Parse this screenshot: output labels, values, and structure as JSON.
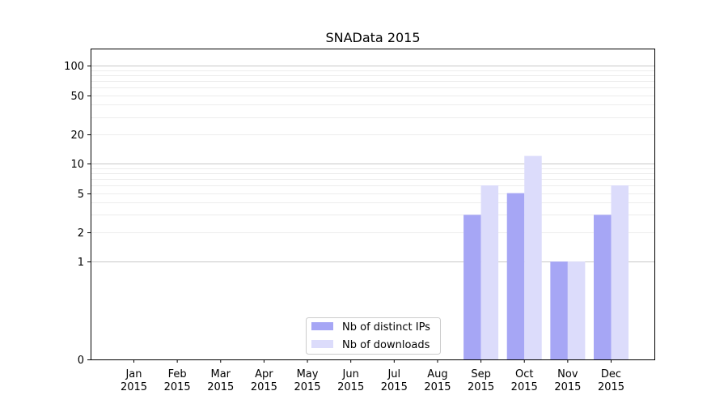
{
  "chart_data": {
    "type": "bar",
    "title": "SNAData 2015",
    "xlabel": "",
    "ylabel": "",
    "y_scale": "symlog",
    "ylim": [
      0,
      150
    ],
    "y_ticks": [
      0,
      1,
      2,
      5,
      10,
      20,
      50,
      100
    ],
    "grid": "horizontal, major and minor",
    "legend_position": "lower-center",
    "categories": [
      {
        "month": "Jan",
        "year": "2015"
      },
      {
        "month": "Feb",
        "year": "2015"
      },
      {
        "month": "Mar",
        "year": "2015"
      },
      {
        "month": "Apr",
        "year": "2015"
      },
      {
        "month": "May",
        "year": "2015"
      },
      {
        "month": "Jun",
        "year": "2015"
      },
      {
        "month": "Jul",
        "year": "2015"
      },
      {
        "month": "Aug",
        "year": "2015"
      },
      {
        "month": "Sep",
        "year": "2015"
      },
      {
        "month": "Oct",
        "year": "2015"
      },
      {
        "month": "Nov",
        "year": "2015"
      },
      {
        "month": "Dec",
        "year": "2015"
      }
    ],
    "series": [
      {
        "name": "Nb of distinct IPs",
        "color": "#a6a6f5",
        "values": [
          0,
          0,
          0,
          0,
          0,
          0,
          0,
          0,
          3,
          5,
          1,
          3
        ]
      },
      {
        "name": "Nb of downloads",
        "color": "#dcdcfb",
        "values": [
          0,
          0,
          0,
          0,
          0,
          0,
          0,
          0,
          6,
          12,
          1,
          6
        ]
      }
    ]
  }
}
